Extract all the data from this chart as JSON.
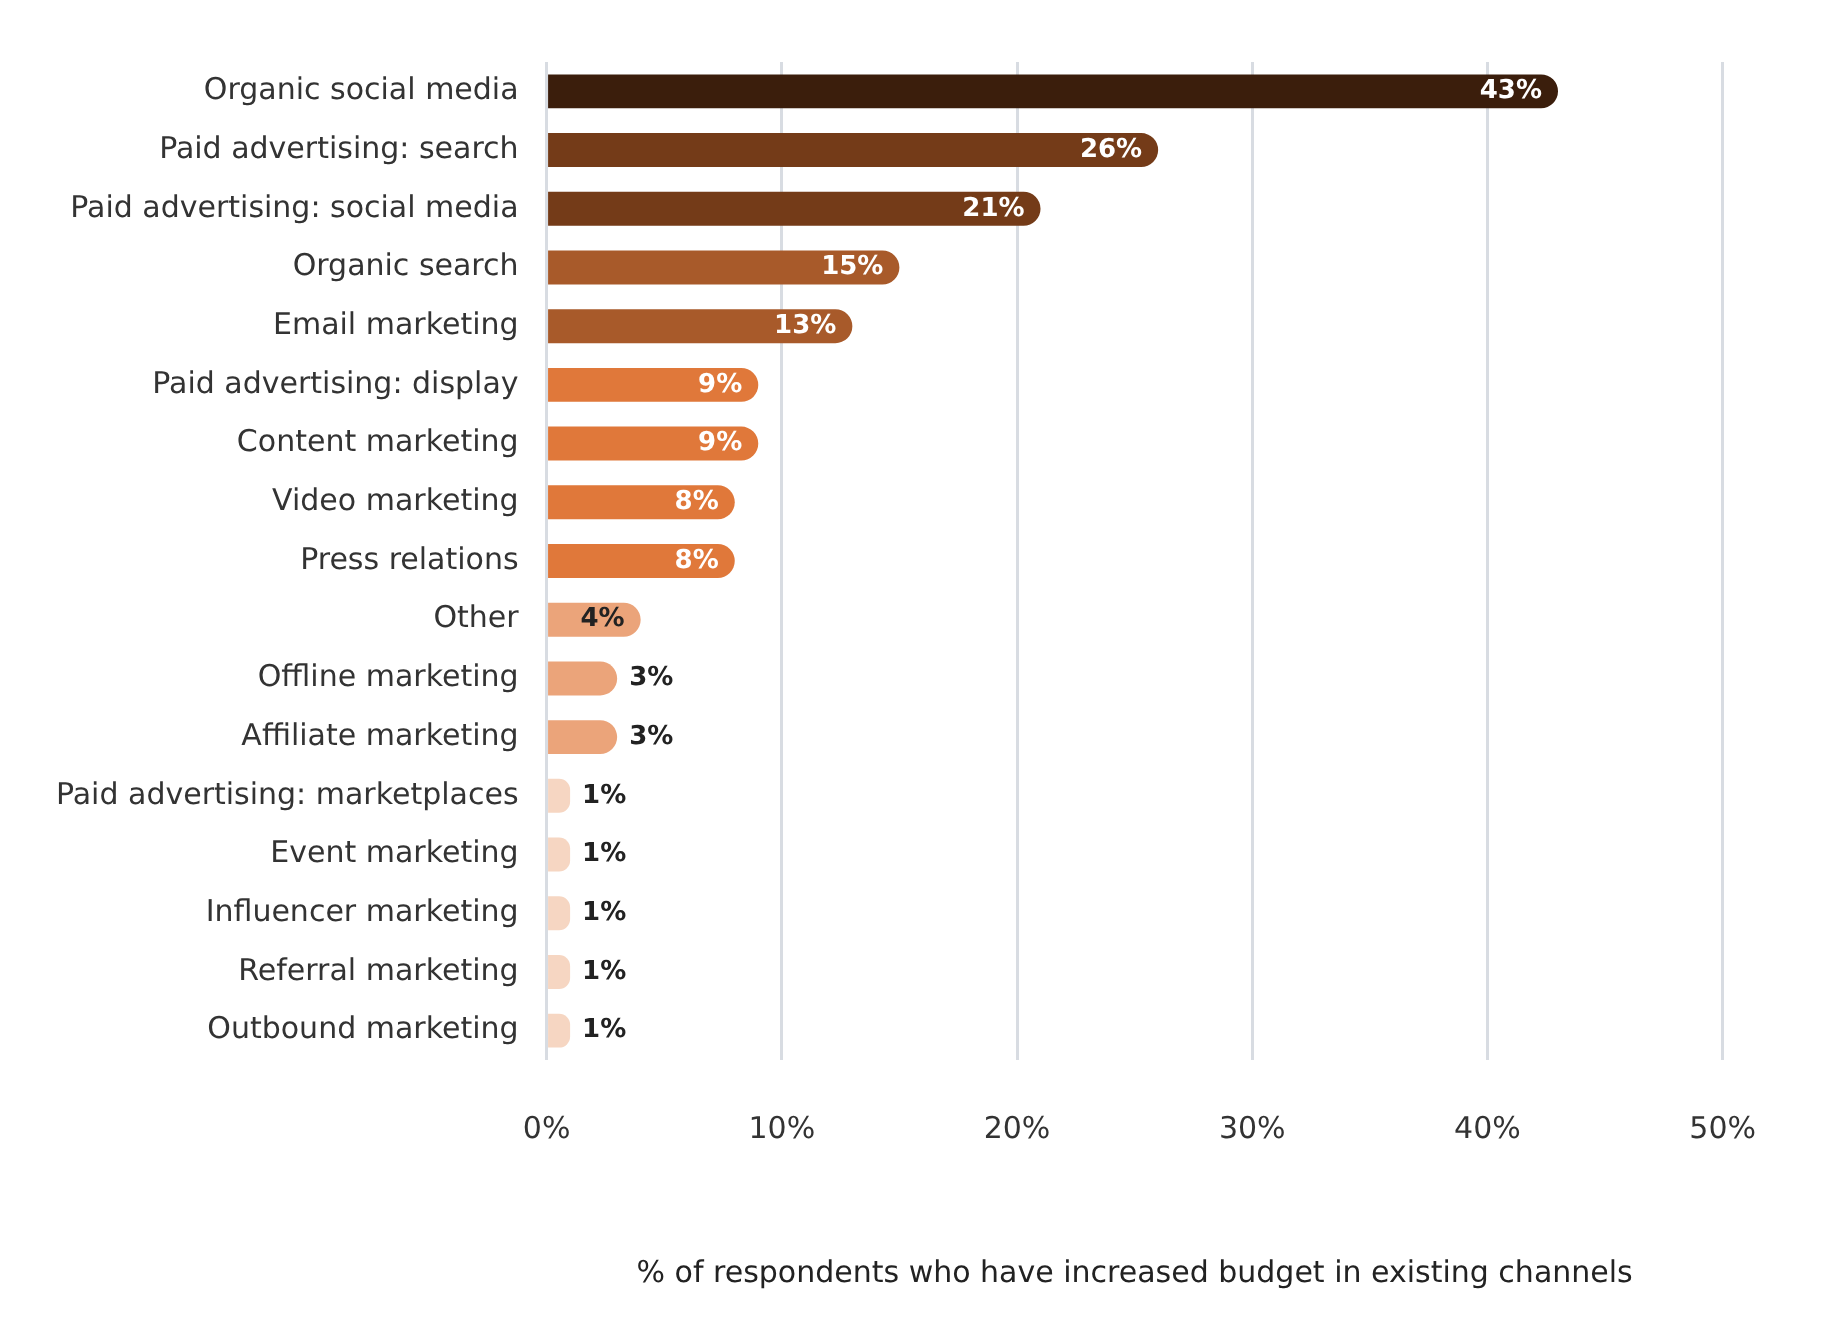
{
  "chart_data": {
    "type": "bar",
    "orientation": "horizontal",
    "xlabel": "% of respondents who have increased budget in existing channels",
    "categories": [
      "Organic social media",
      "Paid advertising: search",
      "Paid advertising: social media",
      "Organic search",
      "Email marketing",
      "Paid advertising: display",
      "Content marketing",
      "Video marketing",
      "Press relations",
      "Other",
      "Offline marketing",
      "Affiliate marketing",
      "Paid advertising: marketplaces",
      "Event marketing",
      "Influencer marketing",
      "Referral marketing",
      "Outbound marketing"
    ],
    "values": [
      43,
      26,
      21,
      15,
      13,
      9,
      9,
      8,
      8,
      4,
      3,
      3,
      1,
      1,
      1,
      1,
      1
    ],
    "value_labels": [
      "43%",
      "26%",
      "21%",
      "15%",
      "13%",
      "9%",
      "9%",
      "8%",
      "8%",
      "4%",
      "3%",
      "3%",
      "1%",
      "1%",
      "1%",
      "1%",
      "1%"
    ],
    "colors": [
      "#3b1e0c",
      "#743b18",
      "#743b18",
      "#a85a2a",
      "#a85a2a",
      "#e0783a",
      "#e0783a",
      "#e0783a",
      "#e0783a",
      "#eba47a",
      "#eba47a",
      "#eba47a",
      "#f6d6c2",
      "#f6d6c2",
      "#f6d6c2",
      "#f6d6c2",
      "#f6d6c2"
    ],
    "xlim": [
      0,
      50
    ],
    "xticks": [
      {
        "value": 0,
        "label": "0%"
      },
      {
        "value": 10,
        "label": "10%"
      },
      {
        "value": 20,
        "label": "20%"
      },
      {
        "value": 30,
        "label": "30%"
      },
      {
        "value": 40,
        "label": "40%"
      },
      {
        "value": 50,
        "label": "50%"
      }
    ],
    "grid": "x",
    "legend": false
  }
}
